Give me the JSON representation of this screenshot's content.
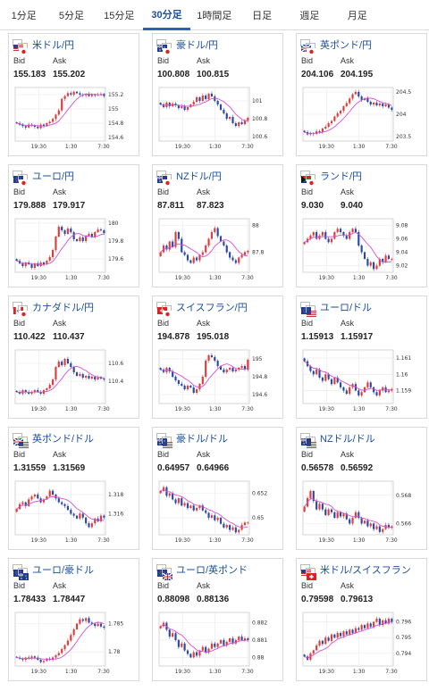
{
  "tabs": [
    {
      "label": "1分足",
      "active": false
    },
    {
      "label": "5分足",
      "active": false
    },
    {
      "label": "15分足",
      "active": false
    },
    {
      "label": "30分足",
      "active": true
    },
    {
      "label": "1時間足",
      "active": false
    },
    {
      "label": "日足",
      "active": false
    },
    {
      "label": "週足",
      "active": false
    },
    {
      "label": "月足",
      "active": false
    }
  ],
  "bid_label": "Bid",
  "ask_label": "Ask",
  "colors": {
    "up": "#e23b3b",
    "down": "#2b4aa6",
    "ma": "#d64fd6",
    "grid": "#e8e8e8",
    "tab_active": "#2b62b8",
    "title": "#1a4f9c"
  },
  "pairs": [
    {
      "name": "米ドル/円",
      "flags": [
        "us",
        "jp"
      ],
      "bid": "155.183",
      "ask": "155.202",
      "chart_data": {
        "type": "candlestick",
        "x_ticks": [
          "19:30",
          "1:30",
          "7:30"
        ],
        "y_ticks": [
          "155.2",
          "155",
          "154.8",
          "154.6"
        ],
        "ylim": [
          154.55,
          155.3
        ],
        "closes": [
          154.8,
          154.78,
          154.76,
          154.74,
          154.78,
          154.77,
          154.75,
          154.73,
          154.78,
          154.76,
          154.8,
          154.82,
          154.86,
          154.92,
          154.98,
          155.14,
          155.18,
          155.22,
          155.2,
          155.24,
          155.22,
          155.2,
          155.19,
          155.21,
          155.18,
          155.2,
          155.19,
          155.2,
          155.21,
          155.18
        ]
      }
    },
    {
      "name": "豪ドル/円",
      "flags": [
        "au",
        "jp"
      ],
      "bid": "100.808",
      "ask": "100.815",
      "chart_data": {
        "type": "candlestick",
        "x_ticks": [
          "19:30",
          "1:30",
          "7:30"
        ],
        "y_ticks": [
          "101",
          "100.8",
          "100.6"
        ],
        "ylim": [
          100.55,
          101.15
        ],
        "closes": [
          100.96,
          100.93,
          100.98,
          100.94,
          100.97,
          100.95,
          100.92,
          100.94,
          100.9,
          100.93,
          100.96,
          100.99,
          101.04,
          101.0,
          101.06,
          101.02,
          101.08,
          101.05,
          101.0,
          100.96,
          100.9,
          100.86,
          100.8,
          100.82,
          100.75,
          100.72,
          100.76,
          100.74,
          100.78,
          100.81
        ]
      }
    },
    {
      "name": "英ポンド/円",
      "flags": [
        "gb",
        "jp"
      ],
      "bid": "204.106",
      "ask": "204.195",
      "chart_data": {
        "type": "candlestick",
        "x_ticks": [
          "19:30",
          "1:30",
          "7:30"
        ],
        "y_ticks": [
          "204.5",
          "204",
          "203.5"
        ],
        "ylim": [
          203.4,
          204.6
        ],
        "closes": [
          203.6,
          203.55,
          203.58,
          203.56,
          203.62,
          203.6,
          203.68,
          203.72,
          203.8,
          203.85,
          203.95,
          204.02,
          204.08,
          204.18,
          204.25,
          204.35,
          204.45,
          204.5,
          204.4,
          204.32,
          204.36,
          204.28,
          204.22,
          204.26,
          204.2,
          204.24,
          204.18,
          204.22,
          204.15,
          204.1
        ]
      }
    },
    {
      "name": "ユーロ/円",
      "flags": [
        "eu",
        "jp"
      ],
      "bid": "179.888",
      "ask": "179.917",
      "chart_data": {
        "type": "candlestick",
        "x_ticks": [
          "19:30",
          "1:30",
          "7:30"
        ],
        "y_ticks": [
          "180",
          "179.8",
          "179.6"
        ],
        "ylim": [
          179.45,
          180.05
        ],
        "closes": [
          179.58,
          179.55,
          179.52,
          179.56,
          179.54,
          179.5,
          179.55,
          179.52,
          179.56,
          179.54,
          179.58,
          179.62,
          179.7,
          179.85,
          179.96,
          179.92,
          179.88,
          179.94,
          179.9,
          179.82,
          179.8,
          179.84,
          179.8,
          179.86,
          179.88,
          179.85,
          179.9,
          179.93,
          179.92,
          179.89
        ]
      }
    },
    {
      "name": "NZドル/円",
      "flags": [
        "nz",
        "jp"
      ],
      "bid": "87.811",
      "ask": "87.823",
      "chart_data": {
        "type": "candlestick",
        "x_ticks": [
          "19:30",
          "1:30",
          "7:30"
        ],
        "y_ticks": [
          "88",
          "87.8"
        ],
        "ylim": [
          87.65,
          88.05
        ],
        "closes": [
          87.8,
          87.85,
          87.82,
          87.88,
          87.84,
          87.95,
          87.9,
          87.8,
          87.78,
          87.74,
          87.72,
          87.76,
          87.74,
          87.78,
          87.8,
          87.85,
          87.9,
          87.95,
          87.98,
          87.92,
          87.88,
          87.85,
          87.8,
          87.76,
          87.74,
          87.72,
          87.76,
          87.78,
          87.8,
          87.81
        ]
      }
    },
    {
      "name": "ランド/円",
      "flags": [
        "za",
        "jp"
      ],
      "bid": "9.030",
      "ask": "9.040",
      "chart_data": {
        "type": "candlestick",
        "x_ticks": [
          "19:30",
          "1:30",
          "7:30"
        ],
        "y_ticks": [
          "9.08",
          "9.06",
          "9.04",
          "9.02"
        ],
        "ylim": [
          9.01,
          9.09
        ],
        "closes": [
          9.055,
          9.06,
          9.065,
          9.07,
          9.06,
          9.065,
          9.07,
          9.06,
          9.055,
          9.06,
          9.07,
          9.075,
          9.07,
          9.065,
          9.06,
          9.07,
          9.075,
          9.07,
          9.05,
          9.04,
          9.03,
          9.02,
          9.025,
          9.015,
          9.02,
          9.03,
          9.025,
          9.035,
          9.03,
          9.03
        ]
      }
    },
    {
      "name": "カナダドル/円",
      "flags": [
        "ca",
        "jp"
      ],
      "bid": "110.422",
      "ask": "110.437",
      "chart_data": {
        "type": "candlestick",
        "x_ticks": [
          "19:30",
          "1:30",
          "7:30"
        ],
        "y_ticks": [
          "110.6",
          "110.4"
        ],
        "ylim": [
          110.15,
          110.75
        ],
        "closes": [
          110.28,
          110.26,
          110.3,
          110.28,
          110.26,
          110.28,
          110.3,
          110.28,
          110.26,
          110.3,
          110.32,
          110.36,
          110.42,
          110.56,
          110.62,
          110.58,
          110.65,
          110.6,
          110.56,
          110.5,
          110.46,
          110.48,
          110.44,
          110.46,
          110.43,
          110.45,
          110.42,
          110.44,
          110.43,
          110.42
        ]
      }
    },
    {
      "name": "スイスフラン/円",
      "flags": [
        "ch",
        "jp"
      ],
      "bid": "194.878",
      "ask": "195.018",
      "chart_data": {
        "type": "candlestick",
        "x_ticks": [
          "19:30",
          "1:30",
          "7:30"
        ],
        "y_ticks": [
          "195",
          "194.8",
          "194.6"
        ],
        "ylim": [
          194.5,
          195.1
        ],
        "closes": [
          194.88,
          194.85,
          194.9,
          194.86,
          194.8,
          194.76,
          194.72,
          194.7,
          194.66,
          194.7,
          194.68,
          194.62,
          194.66,
          194.72,
          194.8,
          194.98,
          195.04,
          195.02,
          194.98,
          194.92,
          194.88,
          194.85,
          194.88,
          194.9,
          194.86,
          194.88,
          194.9,
          194.92,
          194.88,
          194.99
        ]
      }
    },
    {
      "name": "ユーロ/ドル",
      "flags": [
        "eu",
        "us"
      ],
      "bid": "1.15913",
      "ask": "1.15917",
      "chart_data": {
        "type": "candlestick",
        "x_ticks": [
          "19:30",
          "1:30",
          "7:30"
        ],
        "y_ticks": [
          "1.161",
          "1.16",
          "1.159"
        ],
        "ylim": [
          1.1582,
          1.1615
        ],
        "closes": [
          1.1608,
          1.1605,
          1.1602,
          1.16,
          1.1603,
          1.1598,
          1.1596,
          1.16,
          1.1597,
          1.1594,
          1.1598,
          1.1595,
          1.1592,
          1.159,
          1.1588,
          1.1592,
          1.1594,
          1.159,
          1.1587,
          1.1589,
          1.1592,
          1.1595,
          1.1592,
          1.1589,
          1.1587,
          1.159,
          1.1592,
          1.1589,
          1.159,
          1.1591
        ]
      }
    },
    {
      "name": "英ポンド/ドル",
      "flags": [
        "gb",
        "us"
      ],
      "bid": "1.31559",
      "ask": "1.31569",
      "chart_data": {
        "type": "candlestick",
        "x_ticks": [
          "19:30",
          "1:30",
          "7:30"
        ],
        "y_ticks": [
          "1.318",
          "1.316"
        ],
        "ylim": [
          1.3138,
          1.3194
        ],
        "closes": [
          1.3165,
          1.317,
          1.3172,
          1.3168,
          1.3175,
          1.3178,
          1.318,
          1.3176,
          1.3172,
          1.3175,
          1.3178,
          1.3184,
          1.318,
          1.3176,
          1.3172,
          1.317,
          1.3168,
          1.3164,
          1.316,
          1.3158,
          1.3155,
          1.316,
          1.3156,
          1.315,
          1.3146,
          1.315,
          1.3155,
          1.3152,
          1.3158,
          1.3156
        ]
      }
    },
    {
      "name": "豪ドル/ドル",
      "flags": [
        "au",
        "us"
      ],
      "bid": "0.64957",
      "ask": "0.64966",
      "chart_data": {
        "type": "candlestick",
        "x_ticks": [
          "19:30",
          "1:30",
          "7:30"
        ],
        "y_ticks": [
          "0.652",
          "0.65"
        ],
        "ylim": [
          0.6486,
          0.653
        ],
        "closes": [
          0.6522,
          0.6525,
          0.6518,
          0.652,
          0.6515,
          0.6512,
          0.6516,
          0.651,
          0.6512,
          0.6508,
          0.651,
          0.6506,
          0.6508,
          0.651,
          0.6506,
          0.6504,
          0.65,
          0.6502,
          0.6498,
          0.65,
          0.6495,
          0.6492,
          0.6494,
          0.649,
          0.6492,
          0.6488,
          0.649,
          0.6494,
          0.6496,
          0.6496
        ]
      }
    },
    {
      "name": "NZドル/ドル",
      "flags": [
        "nz",
        "us"
      ],
      "bid": "0.56578",
      "ask": "0.56592",
      "chart_data": {
        "type": "candlestick",
        "x_ticks": [
          "19:30",
          "1:30",
          "7:30"
        ],
        "y_ticks": [
          "0.568",
          "0.566"
        ],
        "ylim": [
          0.5652,
          0.569
        ],
        "closes": [
          0.5672,
          0.5678,
          0.5683,
          0.5676,
          0.567,
          0.5674,
          0.567,
          0.5666,
          0.567,
          0.5668,
          0.5664,
          0.5668,
          0.5665,
          0.5667,
          0.5663,
          0.566,
          0.5664,
          0.5668,
          0.5664,
          0.566,
          0.5662,
          0.5658,
          0.566,
          0.5656,
          0.5658,
          0.5654,
          0.5656,
          0.5659,
          0.5657,
          0.5658
        ]
      }
    },
    {
      "name": "ユーロ/豪ドル",
      "flags": [
        "eu",
        "au"
      ],
      "bid": "1.78433",
      "ask": "1.78447",
      "chart_data": {
        "type": "candlestick",
        "x_ticks": [
          "19:30",
          "1:30",
          "7:30"
        ],
        "y_ticks": [
          "1.785",
          "1.78"
        ],
        "ylim": [
          1.7775,
          1.787
        ],
        "closes": [
          1.779,
          1.7788,
          1.7786,
          1.779,
          1.7788,
          1.7792,
          1.779,
          1.7786,
          1.7782,
          1.7784,
          1.7788,
          1.7786,
          1.779,
          1.7794,
          1.7798,
          1.7805,
          1.7812,
          1.782,
          1.783,
          1.784,
          1.785,
          1.7858,
          1.7855,
          1.786,
          1.7852,
          1.785,
          1.7846,
          1.785,
          1.7845,
          1.7843
        ]
      }
    },
    {
      "name": "ユーロ/英ポンド",
      "flags": [
        "eu",
        "gb"
      ],
      "bid": "0.88098",
      "ask": "0.88136",
      "chart_data": {
        "type": "candlestick",
        "x_ticks": [
          "19:30",
          "1:30",
          "7:30"
        ],
        "y_ticks": [
          "0.882",
          "0.881",
          "0.88"
        ],
        "ylim": [
          0.8795,
          0.8826
        ],
        "closes": [
          0.8818,
          0.882,
          0.8816,
          0.8812,
          0.8814,
          0.881,
          0.8806,
          0.8808,
          0.8804,
          0.8802,
          0.88,
          0.8803,
          0.8801,
          0.8804,
          0.8806,
          0.8803,
          0.8805,
          0.8808,
          0.8806,
          0.8808,
          0.881,
          0.8807,
          0.8809,
          0.8811,
          0.8808,
          0.881,
          0.8812,
          0.881,
          0.8811,
          0.881
        ]
      }
    },
    {
      "name": "米ドル/スイスフラン",
      "flags": [
        "us",
        "ch"
      ],
      "bid": "0.79598",
      "ask": "0.79613",
      "chart_data": {
        "type": "candlestick",
        "x_ticks": [
          "19:30",
          "1:30",
          "7:30"
        ],
        "y_ticks": [
          "0.796",
          "0.795",
          "0.794"
        ],
        "ylim": [
          0.7932,
          0.7966
        ],
        "closes": [
          0.7938,
          0.7936,
          0.794,
          0.7942,
          0.7945,
          0.7948,
          0.7946,
          0.795,
          0.7948,
          0.7952,
          0.795,
          0.7953,
          0.7951,
          0.7954,
          0.7952,
          0.7955,
          0.7953,
          0.7956,
          0.7955,
          0.7958,
          0.7956,
          0.7959,
          0.7957,
          0.796,
          0.7962,
          0.7958,
          0.7961,
          0.7959,
          0.7962,
          0.796
        ]
      }
    }
  ]
}
